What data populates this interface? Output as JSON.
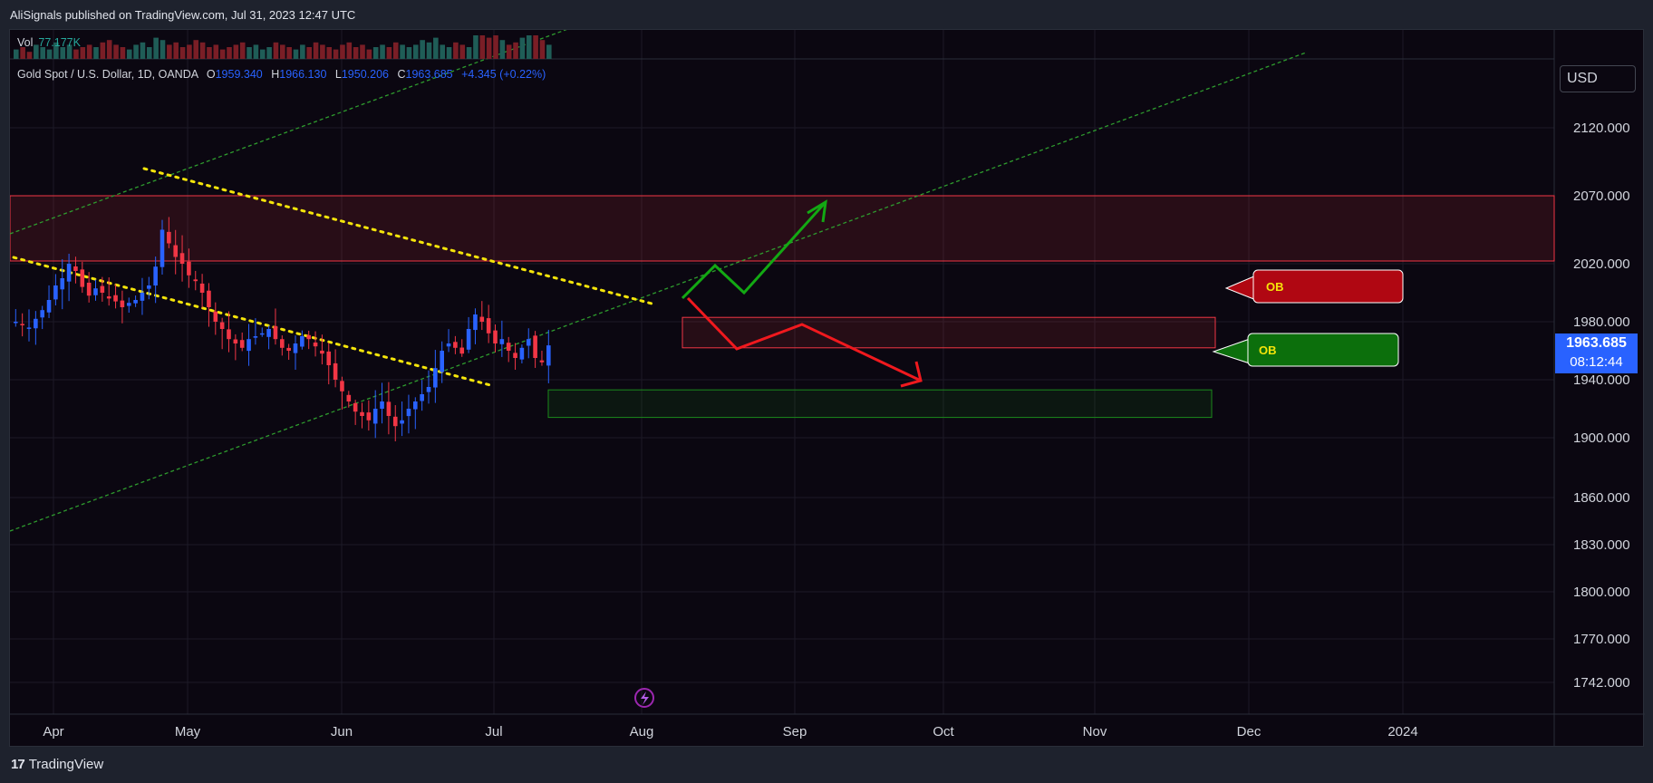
{
  "header": {
    "text": "AliSignals published on TradingView.com, Jul 31, 2023 12:47 UTC"
  },
  "volume": {
    "label": "Vol",
    "value": "77.177K"
  },
  "legend": {
    "symbol": "Gold Spot / U.S. Dollar, 1D, OANDA",
    "open_label": "O",
    "open": "1959.340",
    "high_label": "H",
    "high": "1966.130",
    "low_label": "L",
    "low": "1950.206",
    "close_label": "C",
    "close": "1963.685",
    "change": "+4.345 (+0.22%)"
  },
  "currency_button": "USD",
  "price_tag": {
    "price": "1963.685",
    "countdown": "08:12:44"
  },
  "footer": {
    "brand": "TradingView"
  },
  "colors": {
    "background": "#0b0711",
    "bull": "#2962ff",
    "bear": "#f23645",
    "supply_zone": "#f23645",
    "demand_zone": "#1b8a1b",
    "trendline": "#f5e50a",
    "channel": "#2e9b2e",
    "projection_up": "#13a813",
    "projection_down": "#f0191e"
  },
  "icons": {
    "event": "lightning-icon"
  },
  "chart_data": {
    "type": "candlestick",
    "symbol": "Gold Spot / U.S. Dollar, 1D, OANDA",
    "y_ticks": [
      "2120.000",
      "2070.000",
      "2020.000",
      "1980.000",
      "1940.000",
      "1900.000",
      "1860.000",
      "1830.000",
      "1800.000",
      "1770.000",
      "1742.000"
    ],
    "x_ticks": [
      "Apr",
      "May",
      "Jun",
      "Jul",
      "Aug",
      "Sep",
      "Oct",
      "Nov",
      "Dec",
      "2024"
    ],
    "candles_trend": [
      1980,
      1978,
      1976,
      1982,
      1988,
      1995,
      2005,
      2010,
      2020,
      2015,
      2004,
      1998,
      2003,
      2000,
      1996,
      1994,
      1990,
      1993,
      1995,
      2000,
      2005,
      2018,
      2045,
      2035,
      2025,
      2020,
      2012,
      2008,
      2000,
      1990,
      1980,
      1975,
      1968,
      1965,
      1962,
      1968,
      1970,
      1972,
      1975,
      1968,
      1962,
      1960,
      1965,
      1970,
      1968,
      1963,
      1958,
      1950,
      1940,
      1932,
      1925,
      1918,
      1915,
      1912,
      1920,
      1925,
      1915,
      1908,
      1912,
      1920,
      1925,
      1930,
      1935,
      1948,
      1960,
      1965,
      1962,
      1958,
      1975,
      1985,
      1980,
      1972,
      1965,
      1968,
      1960,
      1955,
      1962,
      1968,
      1955,
      1952,
      1963.685
    ],
    "volume_profile": [
      0.4,
      0.5,
      0.3,
      0.6,
      0.5,
      0.4,
      0.7,
      0.5,
      0.6,
      0.4,
      0.5,
      0.6,
      0.5,
      0.7,
      0.8,
      0.6,
      0.5,
      0.4,
      0.6,
      0.7,
      0.5,
      0.9,
      0.8,
      0.6,
      0.7,
      0.5,
      0.6,
      0.8,
      0.7,
      0.5,
      0.6,
      0.4,
      0.5,
      0.6,
      0.7,
      0.5,
      0.6,
      0.4,
      0.5,
      0.7,
      0.6,
      0.5,
      0.4,
      0.6,
      0.5,
      0.7,
      0.6,
      0.5,
      0.4,
      0.6,
      0.7,
      0.5,
      0.6,
      0.4,
      0.5,
      0.6,
      0.5,
      0.7,
      0.6,
      0.5,
      0.6,
      0.8,
      0.7,
      0.9,
      0.6,
      0.5,
      0.7,
      0.6,
      0.5,
      1.0,
      1.0,
      0.9,
      1.0,
      0.8,
      0.6,
      0.7,
      0.9,
      1.0,
      1.0,
      0.8,
      0.6
    ],
    "zones": [
      {
        "name": "supply zone",
        "low": 2022,
        "high": 2070
      },
      {
        "name": "OB",
        "kind": "supply",
        "low": 1962,
        "high": 1983
      },
      {
        "name": "OB",
        "kind": "demand",
        "low": 1914,
        "high": 1933
      }
    ],
    "labels": [
      "OB",
      "OB"
    ]
  }
}
